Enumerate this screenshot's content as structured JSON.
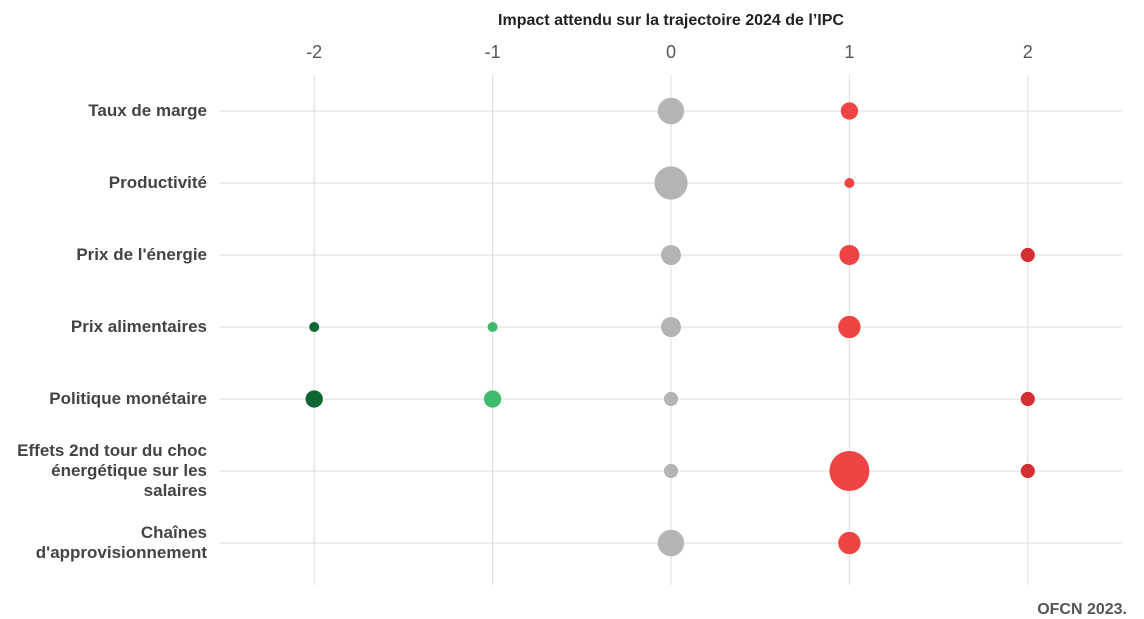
{
  "chart_data": {
    "type": "bubble",
    "title": "Impact attendu sur la trajectoire 2024 de l’IPC",
    "source": "OFCN 2023.",
    "categories": [
      "Taux de marge",
      "Productivité",
      "Prix de l'énergie",
      "Prix alimentaires",
      "Politique monétaire",
      "Effets 2nd tour du choc énergétique sur les salaires",
      "Chaînes d'approvisionnement"
    ],
    "series": [
      {
        "x": -2,
        "color": "#0d6634",
        "sizes": [
          null,
          null,
          null,
          1,
          3,
          null,
          null
        ]
      },
      {
        "x": -1,
        "color": "#3dba6c",
        "sizes": [
          null,
          null,
          null,
          1,
          3,
          null,
          null
        ]
      },
      {
        "x": 0,
        "color": "#b2b4b5",
        "sizes": [
          7,
          11,
          4,
          4,
          2,
          2,
          7
        ]
      },
      {
        "x": 1,
        "color": "#ef4444",
        "sizes": [
          3,
          1,
          4,
          5,
          null,
          16,
          5
        ]
      },
      {
        "x": 2,
        "color": "#d32f33",
        "sizes": [
          null,
          null,
          2,
          null,
          2,
          2,
          null
        ]
      }
    ],
    "xlim": [
      -2.5,
      2.5
    ],
    "xticks": [
      -2,
      -1,
      0,
      1,
      2
    ],
    "grid": true
  }
}
